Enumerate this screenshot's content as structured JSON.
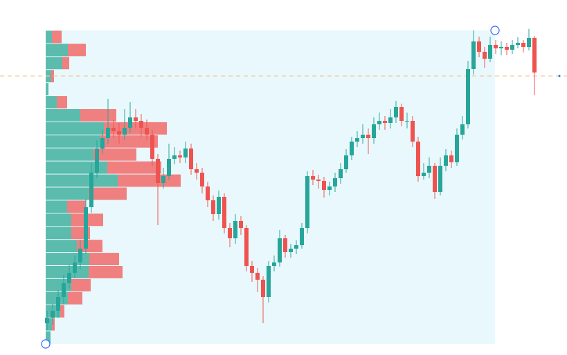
{
  "chart_data": {
    "type": "candlestick",
    "ylim": [
      0,
      454
    ],
    "up_color": "#26a69a",
    "down_color": "#ef5350",
    "open": [
      30,
      38,
      48,
      68,
      88,
      103,
      118,
      138,
      198,
      248,
      283,
      298,
      313,
      308,
      303,
      313,
      328,
      323,
      313,
      303,
      268,
      233,
      243,
      268,
      273,
      270,
      283,
      253,
      248,
      228,
      208,
      188,
      213,
      168,
      153,
      178,
      168,
      113,
      103,
      93,
      68,
      113,
      118,
      153,
      133,
      138,
      143,
      168,
      243,
      238,
      236,
      223,
      228,
      240,
      253,
      273,
      293,
      298,
      303,
      298,
      318,
      323,
      320,
      328,
      343,
      323,
      323,
      293,
      243,
      248,
      258,
      220,
      258,
      273,
      263,
      303,
      318,
      398,
      438,
      423,
      413,
      433,
      428,
      430,
      426,
      433,
      436,
      430,
      443
    ],
    "high": [
      48,
      58,
      78,
      100,
      115,
      128,
      150,
      210,
      262,
      295,
      310,
      355,
      325,
      320,
      340,
      350,
      340,
      333,
      325,
      310,
      275,
      255,
      290,
      285,
      280,
      293,
      290,
      262,
      255,
      235,
      215,
      222,
      218,
      175,
      188,
      185,
      172,
      120,
      110,
      98,
      120,
      128,
      165,
      158,
      145,
      150,
      175,
      250,
      252,
      245,
      242,
      235,
      248,
      262,
      282,
      300,
      308,
      318,
      312,
      328,
      335,
      330,
      340,
      352,
      348,
      335,
      330,
      300,
      262,
      270,
      262,
      270,
      282,
      280,
      312,
      330,
      410,
      454,
      445,
      430,
      445,
      440,
      438,
      436,
      440,
      444,
      440,
      456,
      446
    ],
    "low": [
      20,
      28,
      38,
      58,
      80,
      95,
      108,
      130,
      190,
      240,
      275,
      290,
      298,
      290,
      295,
      305,
      312,
      300,
      295,
      258,
      172,
      225,
      238,
      260,
      262,
      262,
      245,
      238,
      218,
      198,
      178,
      180,
      160,
      140,
      145,
      158,
      105,
      90,
      75,
      30,
      60,
      105,
      112,
      125,
      125,
      130,
      138,
      160,
      230,
      225,
      212,
      215,
      220,
      232,
      248,
      266,
      285,
      290,
      275,
      290,
      310,
      310,
      312,
      320,
      315,
      312,
      285,
      235,
      238,
      240,
      210,
      215,
      250,
      255,
      258,
      296,
      312,
      390,
      415,
      400,
      408,
      420,
      418,
      418,
      420,
      428,
      422,
      425,
      360
    ],
    "close": [
      38,
      48,
      68,
      88,
      103,
      118,
      138,
      198,
      248,
      283,
      298,
      313,
      308,
      303,
      313,
      328,
      323,
      313,
      303,
      268,
      233,
      243,
      268,
      273,
      270,
      283,
      253,
      248,
      228,
      208,
      188,
      213,
      168,
      153,
      178,
      168,
      113,
      103,
      93,
      68,
      113,
      118,
      153,
      133,
      138,
      143,
      168,
      243,
      238,
      236,
      223,
      228,
      240,
      253,
      273,
      293,
      298,
      303,
      298,
      318,
      323,
      320,
      328,
      343,
      323,
      323,
      293,
      243,
      248,
      258,
      220,
      258,
      273,
      263,
      303,
      318,
      398,
      438,
      423,
      413,
      433,
      428,
      430,
      426,
      433,
      436,
      430,
      443,
      393
    ],
    "volume_profile": {
      "up_color": "#5bbcae",
      "down_color": "#f08080",
      "background": "#e9f8fc",
      "up": [
        9,
        32,
        24,
        8,
        4,
        16,
        50,
        84,
        79,
        69,
        89,
        104,
        62,
        31,
        37,
        37,
        45,
        63,
        62,
        37,
        32,
        21,
        9,
        7
      ],
      "down": [
        14,
        26,
        10,
        4,
        0,
        15,
        52,
        91,
        83,
        62,
        78,
        91,
        55,
        27,
        46,
        27,
        37,
        43,
        49,
        28,
        21,
        6,
        4,
        0
      ],
      "start": {
        "index": 0,
        "price": 0
      },
      "end": {
        "index": 81,
        "price": 454
      }
    },
    "price_line": {
      "price": 388,
      "color": "#f5c99a"
    }
  }
}
